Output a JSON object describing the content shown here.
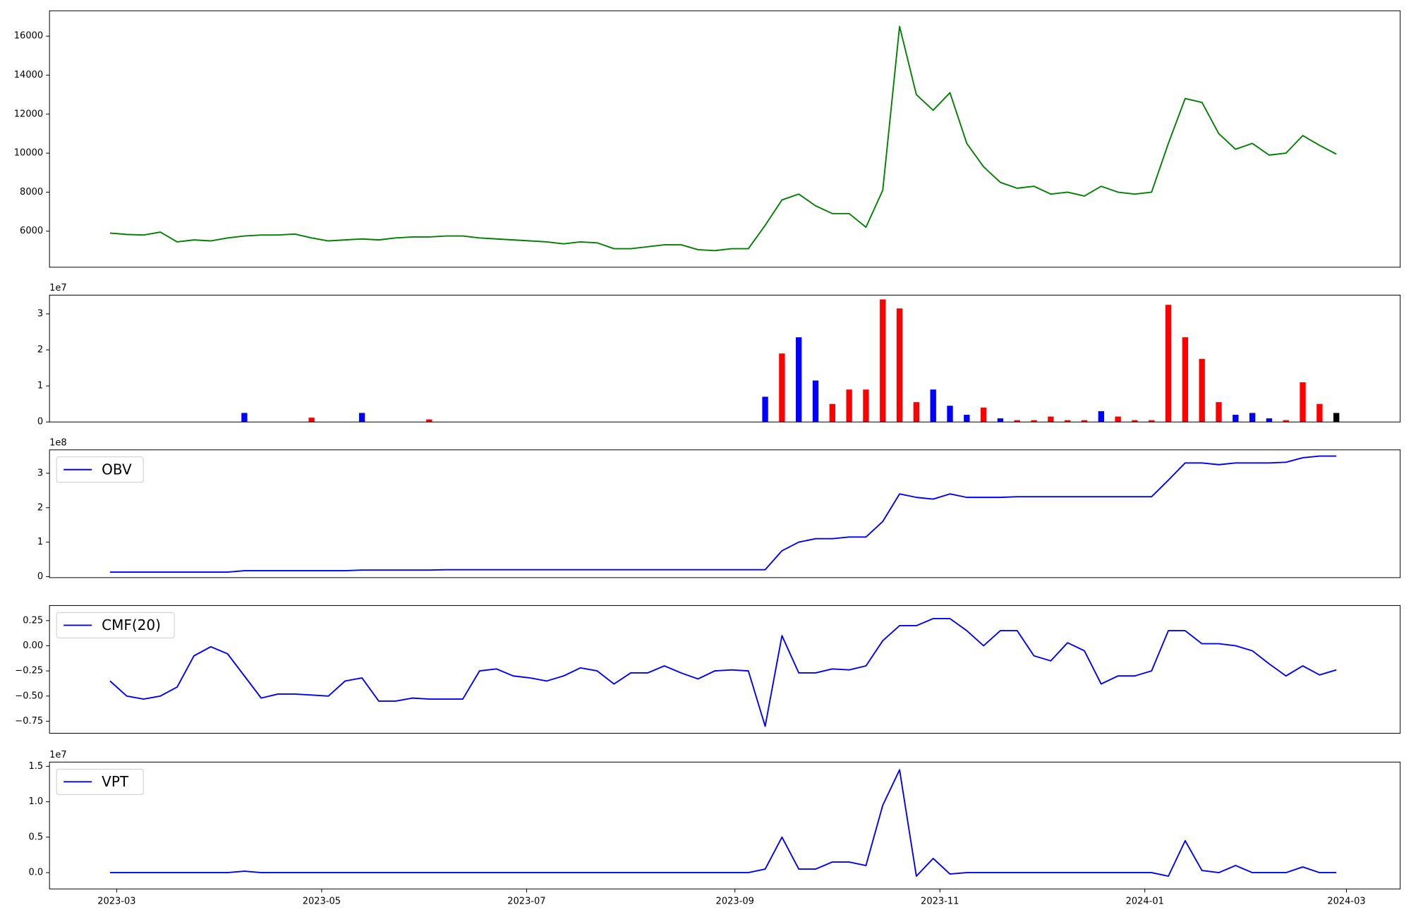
{
  "chart_data": [
    {
      "type": "line",
      "x": [
        19415,
        19420,
        19425,
        19430,
        19435,
        19440,
        19445,
        19450,
        19455,
        19460,
        19465,
        19470,
        19475,
        19480,
        19485,
        19490,
        19495,
        19500,
        19505,
        19510,
        19515,
        19520,
        19525,
        19530,
        19535,
        19540,
        19545,
        19550,
        19555,
        19560,
        19565,
        19570,
        19575,
        19580,
        19585,
        19590,
        19595,
        19600,
        19605,
        19610,
        19615,
        19620,
        19625,
        19630,
        19635,
        19640,
        19645,
        19650,
        19655,
        19660,
        19665,
        19670,
        19675,
        19680,
        19685,
        19690,
        19695,
        19700,
        19705,
        19710,
        19715,
        19720,
        19725,
        19730,
        19735,
        19740,
        19745,
        19750,
        19755,
        19760,
        19765,
        19770,
        19775,
        19780
      ],
      "series": [
        {
          "color": "green",
          "values": [
            5900,
            5830,
            5800,
            5950,
            5450,
            5550,
            5500,
            5650,
            5750,
            5800,
            5800,
            5850,
            5650,
            5500,
            5550,
            5600,
            5550,
            5650,
            5700,
            5700,
            5750,
            5750,
            5650,
            5600,
            5550,
            5500,
            5450,
            5350,
            5450,
            5400,
            5100,
            5100,
            5200,
            5300,
            5300,
            5050,
            5000,
            5100,
            5100,
            6300,
            7600,
            7900,
            7300,
            6900,
            6900,
            6200,
            8100,
            16500,
            13000,
            12200,
            13100,
            10500,
            9300,
            8500,
            8200,
            8300,
            7900,
            8000,
            7800,
            8300,
            8000,
            7900,
            8000,
            10500,
            12800,
            12600,
            11000,
            10200,
            10500,
            9900,
            10000,
            10900,
            10400,
            9950
          ]
        }
      ],
      "xlim": [
        19397,
        19799
      ],
      "ylim": [
        4150,
        17300
      ],
      "yticks": [
        6000,
        8000,
        10000,
        12000,
        14000,
        16000
      ]
    },
    {
      "type": "bar",
      "x": [
        19415,
        19420,
        19425,
        19430,
        19435,
        19440,
        19445,
        19450,
        19455,
        19460,
        19465,
        19470,
        19475,
        19480,
        19485,
        19490,
        19495,
        19500,
        19505,
        19510,
        19515,
        19520,
        19525,
        19530,
        19535,
        19540,
        19545,
        19550,
        19555,
        19560,
        19565,
        19570,
        19575,
        19580,
        19585,
        19590,
        19595,
        19600,
        19605,
        19610,
        19615,
        19620,
        19625,
        19630,
        19635,
        19640,
        19645,
        19650,
        19655,
        19660,
        19665,
        19670,
        19675,
        19680,
        19685,
        19690,
        19695,
        19700,
        19705,
        19710,
        19715,
        19720,
        19725,
        19730,
        19735,
        19740,
        19745,
        19750,
        19755,
        19760,
        19765,
        19770,
        19775,
        19780
      ],
      "values": [
        0,
        0,
        0,
        0,
        0,
        0,
        0,
        0,
        0.25,
        0,
        0,
        0,
        0.12,
        0,
        0,
        0.25,
        0,
        0,
        0,
        0.07,
        0,
        0,
        0,
        0,
        0,
        0,
        0,
        0,
        0,
        0,
        0,
        0,
        0,
        0,
        0,
        0,
        0,
        0,
        0,
        0.7,
        1.9,
        2.35,
        1.15,
        0.5,
        0.9,
        0.9,
        3.4,
        3.15,
        0.55,
        0.9,
        0.45,
        0.2,
        0.4,
        0.1,
        0.05,
        0.05,
        0.15,
        0.05,
        0.05,
        0.3,
        0.15,
        0.05,
        0.05,
        3.25,
        2.35,
        1.75,
        0.55,
        0.2,
        0.25,
        0.1,
        0.05,
        1.1,
        0.5,
        0.25
      ],
      "colors": [
        "red",
        "red",
        "red",
        "red",
        "red",
        "red",
        "red",
        "red",
        "blue",
        "red",
        "red",
        "red",
        "red",
        "red",
        "red",
        "blue",
        "red",
        "red",
        "red",
        "red",
        "red",
        "red",
        "red",
        "red",
        "red",
        "red",
        "red",
        "red",
        "red",
        "red",
        "red",
        "red",
        "red",
        "red",
        "red",
        "red",
        "red",
        "red",
        "red",
        "blue",
        "red",
        "blue",
        "blue",
        "red",
        "red",
        "red",
        "red",
        "red",
        "red",
        "blue",
        "blue",
        "blue",
        "red",
        "blue",
        "red",
        "red",
        "red",
        "red",
        "red",
        "blue",
        "red",
        "red",
        "red",
        "red",
        "red",
        "red",
        "red",
        "blue",
        "blue",
        "blue",
        "red",
        "red",
        "red",
        "black"
      ],
      "offset_label": "1e7",
      "xlim": [
        19397,
        19799
      ],
      "ylim": [
        0,
        3.52
      ],
      "yticks": [
        0,
        1,
        2,
        3
      ]
    },
    {
      "type": "line",
      "x": [
        19415,
        19420,
        19425,
        19430,
        19435,
        19440,
        19445,
        19450,
        19455,
        19460,
        19465,
        19470,
        19475,
        19480,
        19485,
        19490,
        19495,
        19500,
        19505,
        19510,
        19515,
        19520,
        19525,
        19530,
        19535,
        19540,
        19545,
        19550,
        19555,
        19560,
        19565,
        19570,
        19575,
        19580,
        19585,
        19590,
        19595,
        19600,
        19605,
        19610,
        19615,
        19620,
        19625,
        19630,
        19635,
        19640,
        19645,
        19650,
        19655,
        19660,
        19665,
        19670,
        19675,
        19680,
        19685,
        19690,
        19695,
        19700,
        19705,
        19710,
        19715,
        19720,
        19725,
        19730,
        19735,
        19740,
        19745,
        19750,
        19755,
        19760,
        19765,
        19770,
        19775,
        19780
      ],
      "series": [
        {
          "name": "OBV",
          "color": "blue",
          "values": [
            0.13,
            0.13,
            0.13,
            0.13,
            0.13,
            0.13,
            0.13,
            0.13,
            0.17,
            0.17,
            0.17,
            0.17,
            0.17,
            0.17,
            0.17,
            0.19,
            0.19,
            0.19,
            0.19,
            0.19,
            0.2,
            0.2,
            0.2,
            0.2,
            0.2,
            0.2,
            0.2,
            0.2,
            0.2,
            0.2,
            0.2,
            0.2,
            0.2,
            0.2,
            0.2,
            0.2,
            0.2,
            0.2,
            0.2,
            0.2,
            0.75,
            1.0,
            1.1,
            1.1,
            1.15,
            1.15,
            1.6,
            2.4,
            2.3,
            2.25,
            2.4,
            2.3,
            2.3,
            2.3,
            2.32,
            2.32,
            2.32,
            2.32,
            2.32,
            2.32,
            2.32,
            2.32,
            2.32,
            2.8,
            3.3,
            3.3,
            3.25,
            3.3,
            3.3,
            3.3,
            3.32,
            3.45,
            3.5,
            3.5
          ]
        }
      ],
      "offset_label": "1e8",
      "xlim": [
        19397,
        19799
      ],
      "ylim": [
        -0.03,
        3.68
      ],
      "yticks": [
        0,
        1,
        2,
        3
      ]
    },
    {
      "type": "line",
      "x": [
        19415,
        19420,
        19425,
        19430,
        19435,
        19440,
        19445,
        19450,
        19455,
        19460,
        19465,
        19470,
        19475,
        19480,
        19485,
        19490,
        19495,
        19500,
        19505,
        19510,
        19515,
        19520,
        19525,
        19530,
        19535,
        19540,
        19545,
        19550,
        19555,
        19560,
        19565,
        19570,
        19575,
        19580,
        19585,
        19590,
        19595,
        19600,
        19605,
        19610,
        19615,
        19620,
        19625,
        19630,
        19635,
        19640,
        19645,
        19650,
        19655,
        19660,
        19665,
        19670,
        19675,
        19680,
        19685,
        19690,
        19695,
        19700,
        19705,
        19710,
        19715,
        19720,
        19725,
        19730,
        19735,
        19740,
        19745,
        19750,
        19755,
        19760,
        19765,
        19770,
        19775,
        19780
      ],
      "series": [
        {
          "name": "CMF(20)",
          "color": "blue",
          "values": [
            -0.35,
            -0.5,
            -0.53,
            -0.5,
            -0.41,
            -0.1,
            -0.01,
            -0.08,
            -0.3,
            -0.52,
            -0.48,
            -0.48,
            -0.49,
            -0.5,
            -0.35,
            -0.32,
            -0.55,
            -0.55,
            -0.52,
            -0.53,
            -0.53,
            -0.53,
            -0.25,
            -0.23,
            -0.3,
            -0.32,
            -0.35,
            -0.3,
            -0.22,
            -0.25,
            -0.38,
            -0.27,
            -0.27,
            -0.2,
            -0.27,
            -0.33,
            -0.25,
            -0.24,
            -0.25,
            -0.8,
            0.1,
            -0.27,
            -0.27,
            -0.23,
            -0.24,
            -0.2,
            0.05,
            0.2,
            0.2,
            0.27,
            0.27,
            0.15,
            0.0,
            0.15,
            0.15,
            -0.1,
            -0.15,
            0.03,
            -0.05,
            -0.38,
            -0.3,
            -0.3,
            -0.25,
            0.15,
            0.15,
            0.02,
            0.02,
            0.0,
            -0.05,
            -0.18,
            -0.3,
            -0.2,
            -0.29,
            -0.24
          ]
        }
      ],
      "xlim": [
        19397,
        19799
      ],
      "ylim": [
        -0.87,
        0.4
      ],
      "yticks": [
        {
          "value": -0.75,
          "label": "−0.75"
        },
        {
          "value": -0.5,
          "label": "−0.50"
        },
        {
          "value": -0.25,
          "label": "−0.25"
        },
        {
          "value": 0,
          "label": "0.00"
        },
        0.25
      ]
    },
    {
      "type": "line",
      "x": [
        19415,
        19420,
        19425,
        19430,
        19435,
        19440,
        19445,
        19450,
        19455,
        19460,
        19465,
        19470,
        19475,
        19480,
        19485,
        19490,
        19495,
        19500,
        19505,
        19510,
        19515,
        19520,
        19525,
        19530,
        19535,
        19540,
        19545,
        19550,
        19555,
        19560,
        19565,
        19570,
        19575,
        19580,
        19585,
        19590,
        19595,
        19600,
        19605,
        19610,
        19615,
        19620,
        19625,
        19630,
        19635,
        19640,
        19645,
        19650,
        19655,
        19660,
        19665,
        19670,
        19675,
        19680,
        19685,
        19690,
        19695,
        19700,
        19705,
        19710,
        19715,
        19720,
        19725,
        19730,
        19735,
        19740,
        19745,
        19750,
        19755,
        19760,
        19765,
        19770,
        19775,
        19780
      ],
      "series": [
        {
          "name": "VPT",
          "color": "blue",
          "values": [
            0,
            0,
            0,
            0,
            0,
            0,
            0,
            0,
            0.02,
            0,
            0,
            0,
            0,
            0,
            0,
            0,
            0,
            0,
            0,
            0,
            0,
            0,
            0,
            0,
            0,
            0,
            0,
            0,
            0,
            0,
            0,
            0,
            0,
            0,
            0,
            0,
            0,
            0,
            0,
            0.05,
            0.5,
            0.05,
            0.05,
            0.15,
            0.15,
            0.1,
            0.95,
            1.45,
            -0.05,
            0.2,
            -0.02,
            0,
            0,
            0,
            0,
            0,
            0,
            0,
            0,
            0,
            0,
            0,
            0,
            -0.05,
            0.45,
            0.03,
            0,
            0.1,
            0,
            0,
            0,
            0.08,
            0,
            0
          ]
        }
      ],
      "offset_label": "1e7",
      "xlim": [
        19397,
        19799
      ],
      "ylim": [
        -0.23,
        1.56
      ],
      "yticks": [
        {
          "value": 0,
          "label": "0.0"
        },
        0.5,
        {
          "value": 1,
          "label": "1.0"
        },
        1.5
      ],
      "xticks": [
        {
          "value": 19417,
          "label": "2023-03"
        },
        {
          "value": 19478,
          "label": "2023-05"
        },
        {
          "value": 19539,
          "label": "2023-07"
        },
        {
          "value": 19601,
          "label": "2023-09"
        },
        {
          "value": 19662,
          "label": "2023-11"
        },
        {
          "value": 19723,
          "label": "2024-01"
        },
        {
          "value": 19783,
          "label": "2024-03"
        }
      ]
    }
  ]
}
